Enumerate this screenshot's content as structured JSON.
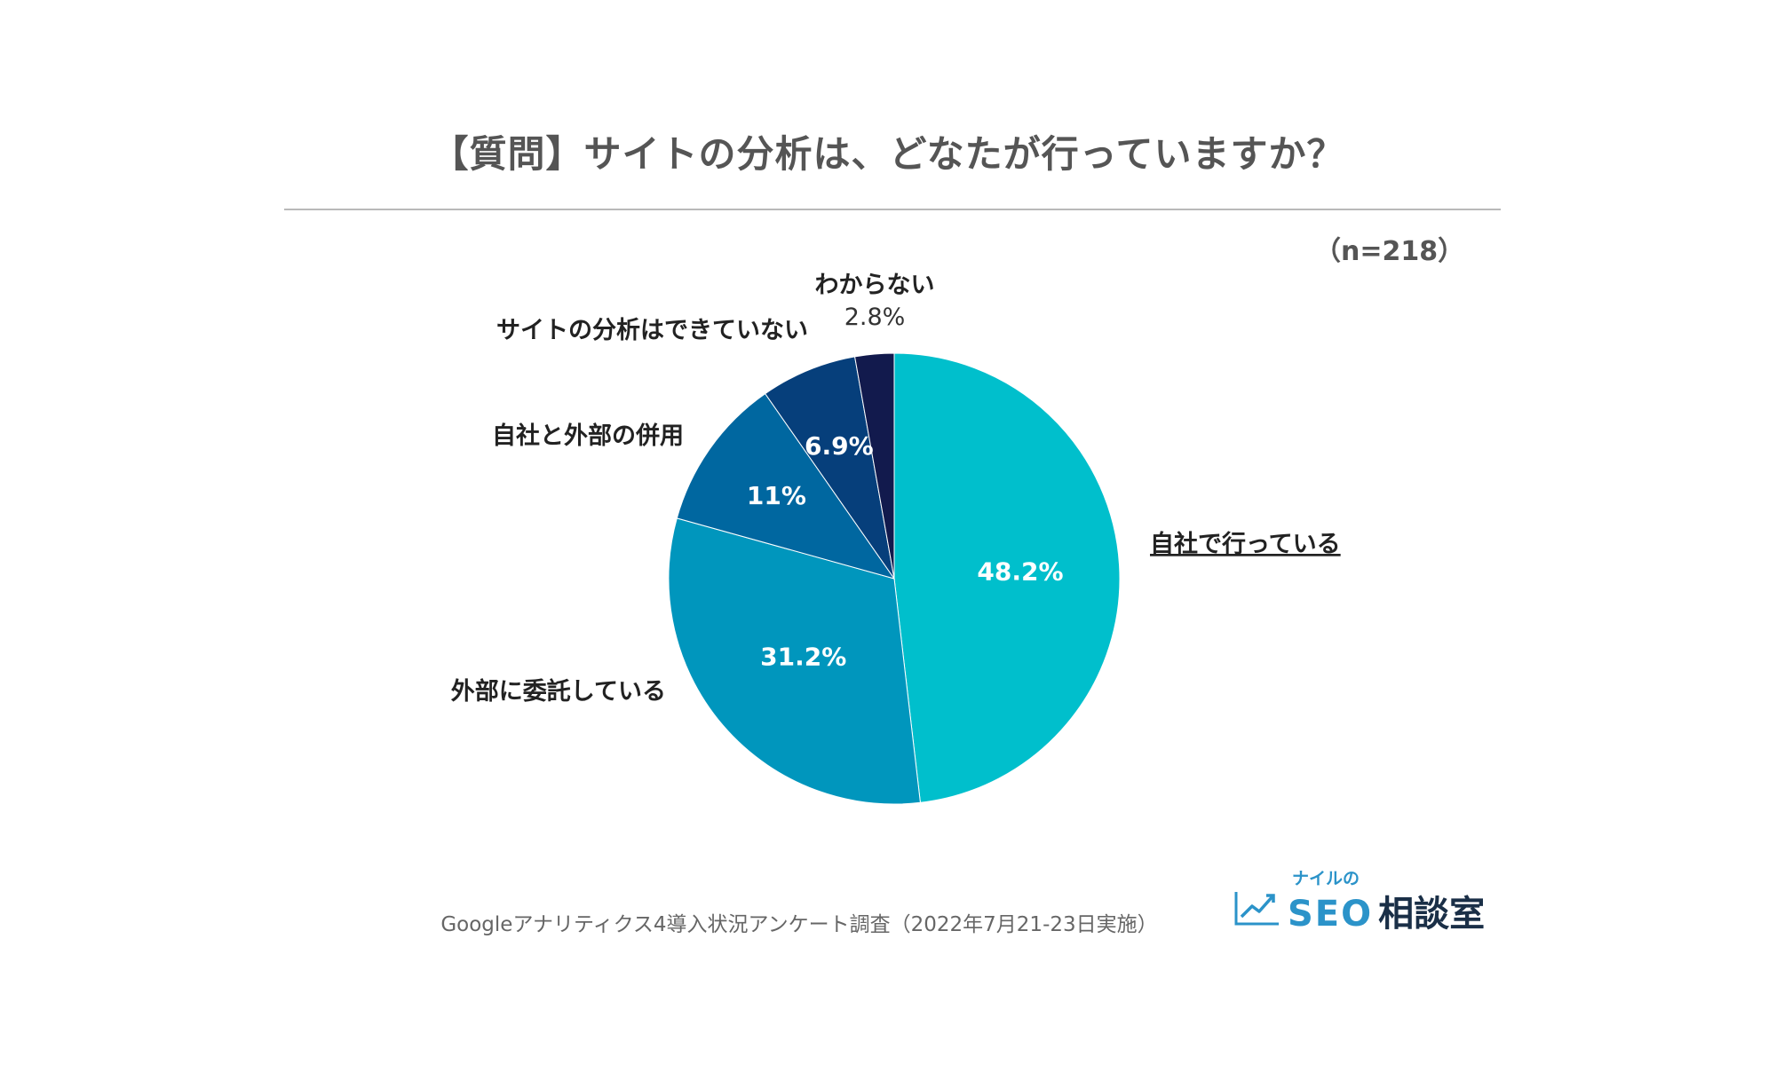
{
  "title": "【質問】サイトの分析は、どなたが行っていますか？",
  "sample_size": "（n=218）",
  "footnote": "Googleアナリティクス4導入状況アンケート調査（2022年7月21-23日実施）",
  "brand": {
    "sub": "ナイルの",
    "main": "SEO",
    "main_suffix": "相談室",
    "icon": "trend-chart-icon",
    "colors": {
      "accent": "#2b93c9",
      "dark": "#1a2f47"
    }
  },
  "chart_data": {
    "type": "pie",
    "start_angle": "12 o'clock",
    "direction": "clockwise",
    "slices": [
      {
        "label": "自社で行っている",
        "value_label": "48.2%",
        "value": 48.2,
        "color": "#00bfcc",
        "underline": true
      },
      {
        "label": "外部に委託している",
        "value_label": "31.2%",
        "value": 31.2,
        "color": "#0096bd"
      },
      {
        "label": "自社と外部の併用",
        "value_label": "11%",
        "value": 11.0,
        "color": "#0067a0"
      },
      {
        "label": "サイトの分析はできていない",
        "value_label": "6.9%",
        "value": 6.9,
        "color": "#063f7b"
      },
      {
        "label": "わからない",
        "value_label": "2.8%",
        "value": 2.8,
        "color": "#121a4d"
      }
    ]
  }
}
